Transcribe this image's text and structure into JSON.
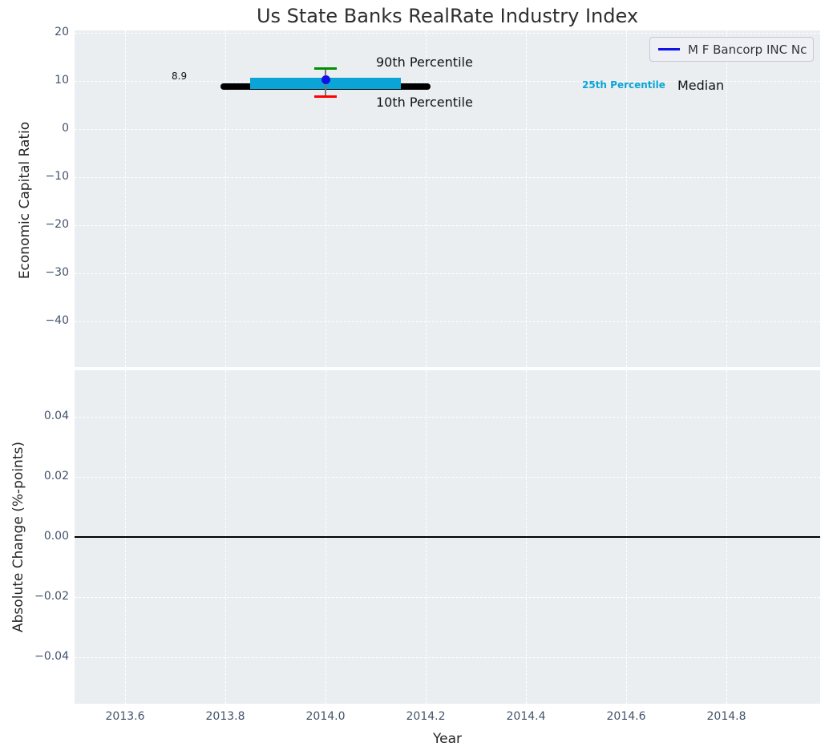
{
  "title": "Us State Banks RealRate Industry Index",
  "legend": {
    "label": "M F Bancorp INC Nc"
  },
  "colors": {
    "plot_background": "#eaeef1",
    "grid": "#ffffff",
    "tick_label": "#43536b",
    "median_line": "#000000",
    "percentile_band": "#0aa5d6",
    "p90_cap": "#008f00",
    "p10_cap": "#ff0000",
    "errorbar_line": "#777777",
    "company_point": "#1212e6",
    "zero_line": "#000000"
  },
  "annotations": {
    "median_value": "8.9",
    "p90": "90th Percentile",
    "p10": "10th Percentile",
    "p25": "25th Percentile",
    "median": "Median"
  },
  "chart_data": [
    {
      "type": "line",
      "title": "Us State Banks RealRate Industry Index",
      "xlabel": "",
      "ylabel": "Economic Capital Ratio",
      "xlim": [
        2013.5,
        2014.99
      ],
      "ylim": [
        -49.5,
        20.5
      ],
      "grid": "white dashed, on",
      "legend_position": "upper right",
      "xticks": {
        "values": [
          2013.6,
          2013.8,
          2014.0,
          2014.2,
          2014.4,
          2014.6,
          2014.8
        ],
        "labels": [
          "2013.6",
          "2013.8",
          "2014.0",
          "2014.2",
          "2014.4",
          "2014.6",
          "2014.8"
        ]
      },
      "yticks": {
        "values": [
          20,
          10,
          0,
          -10,
          -20,
          -30,
          -40
        ],
        "labels": [
          "20",
          "10",
          "0",
          "−10",
          "−20",
          "−30",
          "−40"
        ]
      },
      "series": [
        {
          "name": "Median",
          "type": "thick_line",
          "value": 8.9,
          "x_start": 2013.79,
          "x_end": 2014.21
        },
        {
          "name": "25th-75th Percentile Band",
          "type": "band",
          "y_low": 8.3,
          "y_high": 10.7,
          "x_start": 2013.85,
          "x_end": 2014.15
        },
        {
          "name": "10th-90th Percentile Range",
          "type": "errorbar",
          "x": 2014.0,
          "y_low": 6.8,
          "y_high": 12.7
        },
        {
          "name": "M F Bancorp INC Nc",
          "type": "point",
          "x": 2014.0,
          "y": 10.3
        }
      ]
    },
    {
      "type": "line",
      "xlabel": "Year",
      "ylabel": "Absolute Change (%-points)",
      "xlim": [
        2013.5,
        2014.99
      ],
      "ylim": [
        -0.055,
        0.055
      ],
      "grid": "white dashed, on",
      "xticks": {
        "values": [
          2013.6,
          2013.8,
          2014.0,
          2014.2,
          2014.4,
          2014.6,
          2014.8
        ],
        "labels": [
          "2013.6",
          "2013.8",
          "2014.0",
          "2014.2",
          "2014.4",
          "2014.6",
          "2014.8"
        ]
      },
      "yticks": {
        "values": [
          0.04,
          0.02,
          0,
          -0.02,
          -0.04
        ],
        "labels": [
          "0.04",
          "0.02",
          "0.00",
          "−0.02",
          "−0.04"
        ]
      },
      "series": [],
      "reference_line": {
        "value": 0.0,
        "color": "#000000"
      }
    }
  ]
}
